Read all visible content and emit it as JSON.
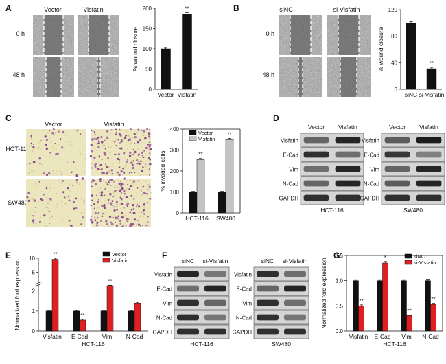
{
  "panels": {
    "A": {
      "label": "A",
      "cols": [
        "Vector",
        "Visfatin"
      ],
      "rows": [
        "0 h",
        "48 h"
      ],
      "chart_data": {
        "type": "bar",
        "categories": [
          "Vector",
          "Visfatin"
        ],
        "values": [
          100,
          185
        ],
        "errors": [
          2,
          4
        ],
        "sig": [
          "",
          "**"
        ],
        "ylabel": "% wound closure",
        "ylim": [
          0,
          200
        ],
        "ticks": [
          0,
          50,
          100,
          150,
          200
        ],
        "colors": [
          "#111111",
          "#111111"
        ]
      }
    },
    "B": {
      "label": "B",
      "cols": [
        "siNC",
        "si-Visfatin"
      ],
      "rows": [
        "0 h",
        "48 h"
      ],
      "chart_data": {
        "type": "bar",
        "categories": [
          "siNC",
          "si-Visfatin"
        ],
        "values": [
          100,
          31
        ],
        "errors": [
          2,
          2
        ],
        "sig": [
          "",
          "**"
        ],
        "ylabel": "% wound closure",
        "ylim": [
          0,
          120
        ],
        "ticks": [
          0,
          40,
          80,
          120
        ],
        "colors": [
          "#111111",
          "#111111"
        ]
      }
    },
    "C": {
      "label": "C",
      "cols": [
        "Vector",
        "Visfatin"
      ],
      "rows": [
        "HCT-116",
        "SW480"
      ],
      "chart_data": {
        "type": "bar",
        "categories": [
          "HCT-116",
          "SW480"
        ],
        "series": [
          {
            "name": "Vector",
            "values": [
              100,
              100
            ],
            "errors": [
              3,
              3
            ],
            "sig": [
              "",
              ""
            ],
            "color": "#111111"
          },
          {
            "name": "Visfatin",
            "values": [
              255,
              350
            ],
            "errors": [
              5,
              6
            ],
            "sig": [
              "**",
              "**"
            ],
            "color": "#c4c4c4"
          }
        ],
        "ylabel": "% invaded cells",
        "ylim": [
          0,
          400
        ],
        "ticks": [
          0,
          100,
          200,
          300,
          400
        ]
      }
    },
    "D": {
      "label": "D",
      "cols": [
        "Vector",
        "Visfatin"
      ],
      "rows": [
        "Visfatin",
        "E-Cad",
        "Vim",
        "N-Cad",
        "GAPDH"
      ],
      "cells": [
        "HCT-116",
        "SW480"
      ],
      "intensity": [
        [
          [
            0.55,
            0.9
          ],
          [
            0.6,
            0.95
          ]
        ],
        [
          [
            0.85,
            0.5
          ],
          [
            0.8,
            0.4
          ]
        ],
        [
          [
            0.5,
            0.9
          ],
          [
            0.55,
            0.9
          ]
        ],
        [
          [
            0.55,
            0.9
          ],
          [
            0.6,
            0.9
          ]
        ],
        [
          [
            0.85,
            0.85
          ],
          [
            0.85,
            0.85
          ]
        ]
      ]
    },
    "E": {
      "label": "E",
      "chart_data": {
        "type": "bar",
        "categories": [
          "Visfatin",
          "E-Cad",
          "Vim",
          "N-Cad"
        ],
        "series": [
          {
            "name": "Vector",
            "values": [
              1.0,
              1.0,
              1.0,
              1.0
            ],
            "errors": [
              0.03,
              0.03,
              0.03,
              0.03
            ],
            "sig": [
              "",
              "",
              "",
              ""
            ],
            "color": "#111111"
          },
          {
            "name": "Visfatin",
            "values": [
              9.5,
              0.55,
              2.6,
              1.4
            ],
            "errors": [
              0.5,
              0.04,
              0.06,
              0.04
            ],
            "sig": [
              "**",
              "**",
              "**",
              ""
            ],
            "color": "#e02020"
          }
        ],
        "ylabel": "Normalized ford expression",
        "xlabel": "HCT-116",
        "ylim": [
          0,
          10
        ],
        "ticks": [
          0,
          1,
          2,
          5,
          10
        ]
      }
    },
    "F": {
      "label": "F",
      "cols": [
        "siNC",
        "si-Visfatin"
      ],
      "rows": [
        "Visfatin",
        "E-Cad",
        "Vim",
        "N-Cad",
        "GAPDH"
      ],
      "cells": [
        "HCT-116",
        "SW480"
      ],
      "intensity": [
        [
          [
            0.9,
            0.45
          ],
          [
            0.85,
            0.5
          ]
        ],
        [
          [
            0.5,
            0.9
          ],
          [
            0.55,
            0.9
          ]
        ],
        [
          [
            0.85,
            0.55
          ],
          [
            0.85,
            0.5
          ]
        ],
        [
          [
            0.85,
            0.45
          ],
          [
            0.85,
            0.45
          ]
        ],
        [
          [
            0.85,
            0.85
          ],
          [
            0.85,
            0.85
          ]
        ]
      ]
    },
    "G": {
      "label": "G",
      "chart_data": {
        "type": "bar",
        "categories": [
          "Visfatin",
          "E-Cad",
          "Vim",
          "N-Cad"
        ],
        "series": [
          {
            "name": "siNC",
            "values": [
              1.0,
              1.0,
              1.0,
              1.0
            ],
            "errors": [
              0.02,
              0.02,
              0.02,
              0.03
            ],
            "sig": [
              "",
              "",
              "",
              ""
            ],
            "color": "#111111"
          },
          {
            "name": "si-Visfatin",
            "values": [
              0.5,
              1.35,
              0.31,
              0.53
            ],
            "errors": [
              0.02,
              0.03,
              0.01,
              0.02
            ],
            "sig": [
              "**",
              "*",
              "**",
              "**"
            ],
            "color": "#e02020"
          }
        ],
        "ylabel": "Normalized ford expression",
        "xlabel": "HCT-116",
        "ylim": [
          0,
          1.5
        ],
        "ticks": [
          0,
          0.5,
          1.0,
          1.5
        ],
        "tick_labels": [
          "0.0",
          "0.5",
          "1.0",
          "1.5"
        ]
      }
    }
  }
}
